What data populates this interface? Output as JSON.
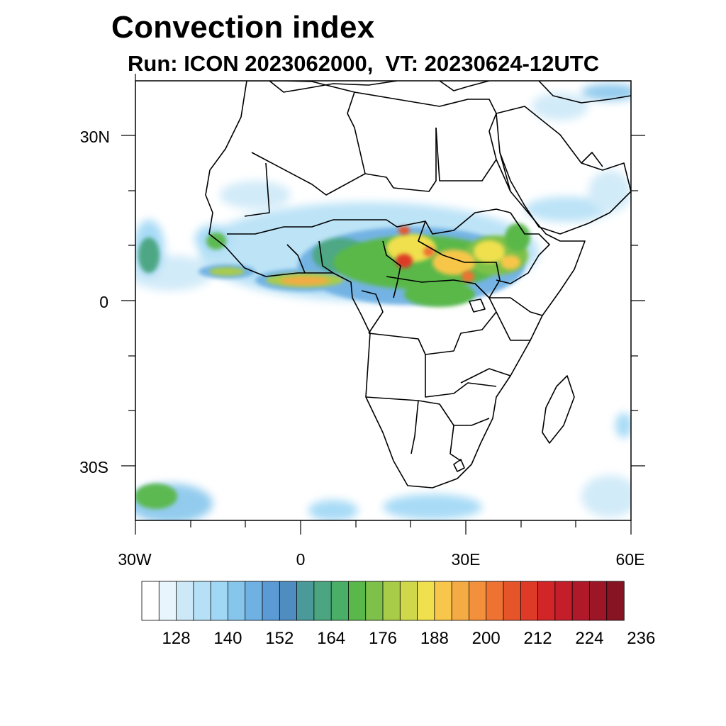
{
  "title": "Convection index",
  "subtitle": "Run: ICON 2023062000,  VT: 20230624-12UTC",
  "map": {
    "lon_range": [
      -30,
      60
    ],
    "lat_range": [
      -40,
      40
    ],
    "lat_labels": [
      "30N",
      "0",
      "30S"
    ],
    "lon_labels": [
      "30W",
      "0",
      "30E",
      "60E"
    ],
    "coastline_color": "#000000",
    "border_color": "#000000"
  },
  "colorbar": {
    "labels": [
      "128",
      "140",
      "152",
      "164",
      "176",
      "188",
      "200",
      "212",
      "224",
      "236"
    ],
    "colors": [
      "#ffffff",
      "#e8f5fc",
      "#cde9f8",
      "#b5e0f6",
      "#9fd7f5",
      "#87c6ec",
      "#6fb1e3",
      "#5a9bd5",
      "#4f8cc0",
      "#4a9a9a",
      "#4aa580",
      "#49ae66",
      "#5ab84a",
      "#7ec14a",
      "#a9cc48",
      "#cfd84a",
      "#f0e04e",
      "#f7c64a",
      "#f5ab44",
      "#f3903c",
      "#ee7232",
      "#e6542a",
      "#dd3a28",
      "#d22528",
      "#c31e2a",
      "#b0192a",
      "#9c1628",
      "#871422"
    ]
  }
}
